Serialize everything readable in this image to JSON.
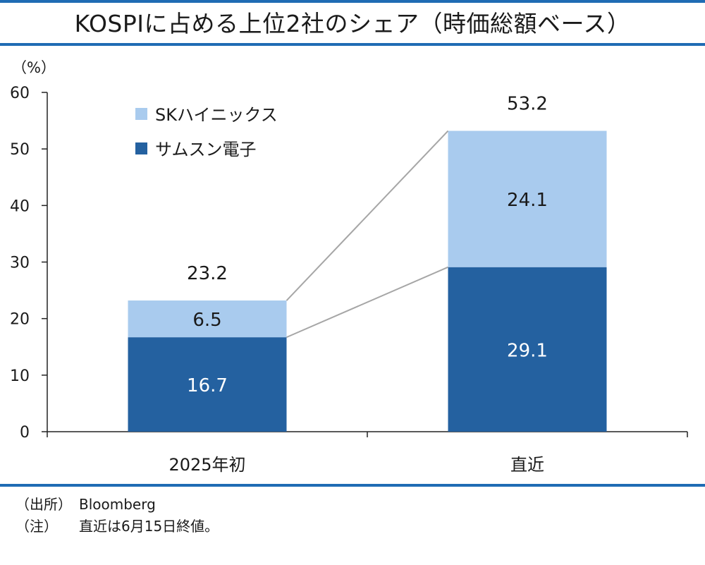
{
  "title": "KOSPIに占める上位2社のシェア（時価総額ベース）",
  "chart_data": {
    "type": "bar",
    "stacked": true,
    "title": "KOSPIに占める上位2社のシェア（時価総額ベース）",
    "unit_label": "（%）",
    "categories": [
      "2025年初",
      "直近"
    ],
    "series": [
      {
        "name": "サムスン電子",
        "values": [
          16.7,
          29.1
        ],
        "color": "#2461a0",
        "label_color": "#ffffff"
      },
      {
        "name": "SKハイニックス",
        "values": [
          6.5,
          24.1
        ],
        "color": "#a9cbee",
        "label_color": "#1a1a1a"
      }
    ],
    "totals": [
      23.2,
      53.2
    ],
    "ylim": [
      0,
      60
    ],
    "yticks": [
      0,
      10,
      20,
      30,
      40,
      50,
      60
    ],
    "legend_position": "top-left",
    "grid": false,
    "connector_lines": true
  },
  "notes": [
    {
      "key": "（出所）",
      "text": "Bloomberg"
    },
    {
      "key": "（注）",
      "text": "直近は6月15日終値。"
    }
  ]
}
